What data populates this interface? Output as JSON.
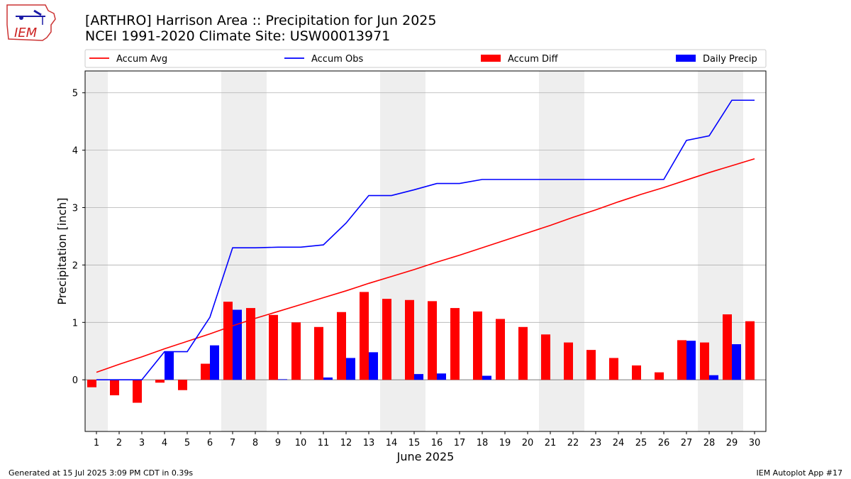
{
  "header": {
    "title_line1": "[ARTHRO] Harrison Area :: Precipitation for Jun 2025",
    "title_line2": "NCEI 1991-2020 Climate Site: USW00013971",
    "logo_text": "IEM"
  },
  "footer": {
    "generated": "Generated at 15 Jul 2025 3:09 PM CDT in 0.39s",
    "app": "IEM Autoplot App #17"
  },
  "colors": {
    "accum_avg": "#ff0000",
    "accum_obs": "#0000ff",
    "accum_diff": "#ff0000",
    "daily_precip": "#0000ff",
    "weekend_shade": "#eeeeee",
    "grid": "#b0b0b0"
  },
  "chart_data": {
    "type": "bar",
    "xlabel": "June 2025",
    "ylabel": "Precipitation [inch]",
    "x": [
      1,
      2,
      3,
      4,
      5,
      6,
      7,
      8,
      9,
      10,
      11,
      12,
      13,
      14,
      15,
      16,
      17,
      18,
      19,
      20,
      21,
      22,
      23,
      24,
      25,
      26,
      27,
      28,
      29,
      30
    ],
    "xticks": [
      "1",
      "2",
      "3",
      "4",
      "5",
      "6",
      "7",
      "8",
      "9",
      "10",
      "11",
      "12",
      "13",
      "14",
      "15",
      "16",
      "17",
      "18",
      "19",
      "20",
      "21",
      "22",
      "23",
      "24",
      "25",
      "26",
      "27",
      "28",
      "29",
      "30"
    ],
    "yticks": [
      "0",
      "1",
      "2",
      "3",
      "4",
      "5"
    ],
    "ylim": [
      -0.9,
      5.38
    ],
    "grid": "horizontal",
    "legend_placement": "top",
    "shaded_weekends": [
      [
        1,
        1
      ],
      [
        7,
        8
      ],
      [
        14,
        15
      ],
      [
        21,
        22
      ],
      [
        28,
        29
      ]
    ],
    "series": [
      {
        "name": "Accum Avg",
        "kind": "line",
        "values": [
          0.13,
          0.27,
          0.4,
          0.54,
          0.67,
          0.8,
          0.94,
          1.07,
          1.19,
          1.31,
          1.43,
          1.55,
          1.68,
          1.8,
          1.92,
          2.05,
          2.17,
          2.3,
          2.43,
          2.56,
          2.69,
          2.83,
          2.96,
          3.1,
          3.23,
          3.35,
          3.48,
          3.61,
          3.73,
          3.85
        ]
      },
      {
        "name": "Accum Obs",
        "kind": "line",
        "values": [
          0.0,
          0.0,
          0.0,
          0.49,
          0.49,
          1.09,
          2.3,
          2.3,
          2.31,
          2.31,
          2.35,
          2.73,
          3.21,
          3.21,
          3.31,
          3.42,
          3.42,
          3.49,
          3.49,
          3.49,
          3.49,
          3.49,
          3.49,
          3.49,
          3.49,
          3.49,
          4.17,
          4.25,
          4.87,
          4.87
        ]
      },
      {
        "name": "Accum Diff",
        "kind": "bar",
        "values": [
          -0.13,
          -0.27,
          -0.4,
          -0.05,
          -0.18,
          0.28,
          1.36,
          1.25,
          1.13,
          1.0,
          0.92,
          1.18,
          1.53,
          1.41,
          1.39,
          1.37,
          1.25,
          1.19,
          1.06,
          0.92,
          0.79,
          0.65,
          0.52,
          0.38,
          0.25,
          0.13,
          0.69,
          0.65,
          1.14,
          1.02
        ]
      },
      {
        "name": "Daily Precip",
        "kind": "bar",
        "values": [
          0.0,
          0.0,
          0.0,
          0.49,
          0.0,
          0.6,
          1.22,
          0.0,
          0.01,
          0.0,
          0.04,
          0.38,
          0.48,
          0.0,
          0.1,
          0.11,
          0.0,
          0.07,
          0.0,
          0.0,
          0.0,
          0.0,
          0.0,
          0.0,
          0.0,
          0.0,
          0.68,
          0.08,
          0.62,
          0.0
        ]
      }
    ]
  }
}
